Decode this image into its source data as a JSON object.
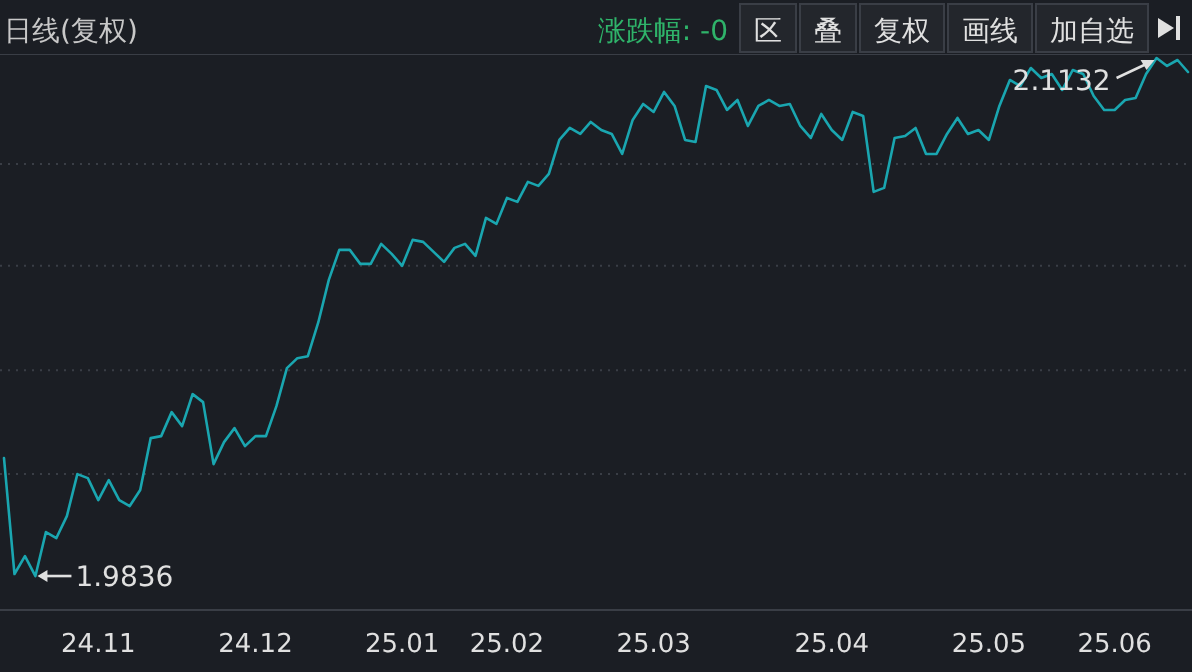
{
  "chart_data": {
    "type": "line",
    "title": "日线(复权)",
    "subtitle": "涨跌幅: -0",
    "categories": [
      null,
      null,
      null,
      null,
      null,
      null,
      null,
      null,
      null,
      "24.11",
      null,
      null,
      null,
      null,
      null,
      null,
      null,
      null,
      null,
      null,
      null,
      null,
      null,
      null,
      "24.12",
      null,
      null,
      null,
      null,
      null,
      null,
      null,
      null,
      null,
      null,
      null,
      null,
      null,
      "25.01",
      null,
      null,
      null,
      null,
      null,
      null,
      null,
      null,
      null,
      "25.02",
      null,
      null,
      null,
      null,
      null,
      null,
      null,
      null,
      null,
      null,
      null,
      null,
      null,
      "25.03",
      null,
      null,
      null,
      null,
      null,
      null,
      null,
      null,
      null,
      null,
      null,
      null,
      null,
      null,
      null,
      null,
      "25.04",
      null,
      null,
      null,
      null,
      null,
      null,
      null,
      null,
      null,
      null,
      null,
      null,
      null,
      null,
      "25.05",
      null,
      null,
      null,
      null,
      null,
      null,
      null,
      null,
      null,
      null,
      null,
      "25.06",
      null,
      null,
      null,
      null,
      null,
      null,
      null
    ],
    "series": [
      {
        "color": "#1aa6b0",
        "line_style": "solid",
        "values": [
          2.0131,
          1.9841,
          1.9886,
          1.9836,
          1.9946,
          1.9931,
          1.9986,
          2.0091,
          2.0081,
          2.0026,
          2.0076,
          2.0026,
          2.0011,
          2.0051,
          2.0181,
          2.0186,
          2.0246,
          2.0211,
          2.0291,
          2.0271,
          2.0116,
          2.0171,
          2.0206,
          2.0161,
          2.0186,
          2.0186,
          2.0261,
          2.0356,
          2.0381,
          2.0386,
          2.0471,
          2.0577,
          2.0652,
          2.0652,
          2.0617,
          2.0617,
          2.0667,
          2.0642,
          2.0612,
          2.0677,
          2.0672,
          2.0647,
          2.0622,
          2.0657,
          2.0667,
          2.0637,
          2.0732,
          2.0717,
          2.0782,
          2.0772,
          2.0822,
          2.0812,
          2.0842,
          2.0927,
          2.0957,
          2.0942,
          2.0972,
          2.0952,
          2.0942,
          2.0892,
          2.0977,
          2.1017,
          2.0997,
          2.1047,
          2.1012,
          2.0927,
          2.0922,
          2.1062,
          2.1052,
          2.1002,
          2.1027,
          2.0962,
          2.1012,
          2.1027,
          2.1012,
          2.1017,
          2.0962,
          2.0932,
          2.0992,
          2.0952,
          2.0927,
          2.0997,
          2.0987,
          2.0797,
          2.0807,
          2.0932,
          2.0937,
          2.0957,
          2.0892,
          2.0892,
          2.0942,
          2.0982,
          2.0942,
          2.0952,
          2.0927,
          2.1012,
          2.1077,
          2.1062,
          2.1107,
          2.1082,
          2.1092,
          2.1052,
          2.1102,
          2.1092,
          2.1037,
          2.1002,
          2.1002,
          2.1027,
          2.1032,
          2.1092,
          2.1132,
          2.1112,
          2.1127,
          2.1097
        ],
        "value_labels": [
          null,
          null,
          null,
          "1.9836",
          null,
          null,
          null,
          null,
          null,
          null,
          null,
          null,
          null,
          null,
          null,
          null,
          null,
          null,
          null,
          null,
          null,
          null,
          null,
          null,
          null,
          null,
          null,
          null,
          null,
          null,
          null,
          null,
          null,
          null,
          null,
          null,
          null,
          null,
          null,
          null,
          null,
          null,
          null,
          null,
          null,
          null,
          null,
          null,
          null,
          null,
          null,
          null,
          null,
          null,
          null,
          null,
          null,
          null,
          null,
          null,
          null,
          null,
          null,
          null,
          null,
          null,
          null,
          null,
          null,
          null,
          null,
          null,
          null,
          null,
          null,
          null,
          null,
          null,
          null,
          null,
          null,
          null,
          null,
          null,
          null,
          null,
          null,
          null,
          null,
          null,
          null,
          null,
          null,
          null,
          null,
          null,
          null,
          null,
          null,
          null,
          null,
          null,
          null,
          null,
          null,
          null,
          null,
          null,
          null,
          null,
          "2.1132",
          null,
          null,
          null
        ]
      }
    ],
    "ylim": [
      1.9751,
      2.1137
    ],
    "yticks": [
      {
        "value": 2.0091,
        "label": null
      },
      {
        "value": 2.0351,
        "label": null
      },
      {
        "value": 2.0612,
        "label": null
      },
      {
        "value": 2.0867,
        "label": null
      }
    ],
    "grid": "y",
    "annotations": [
      "区",
      "叠",
      "复权",
      "画线",
      "加自选"
    ]
  }
}
